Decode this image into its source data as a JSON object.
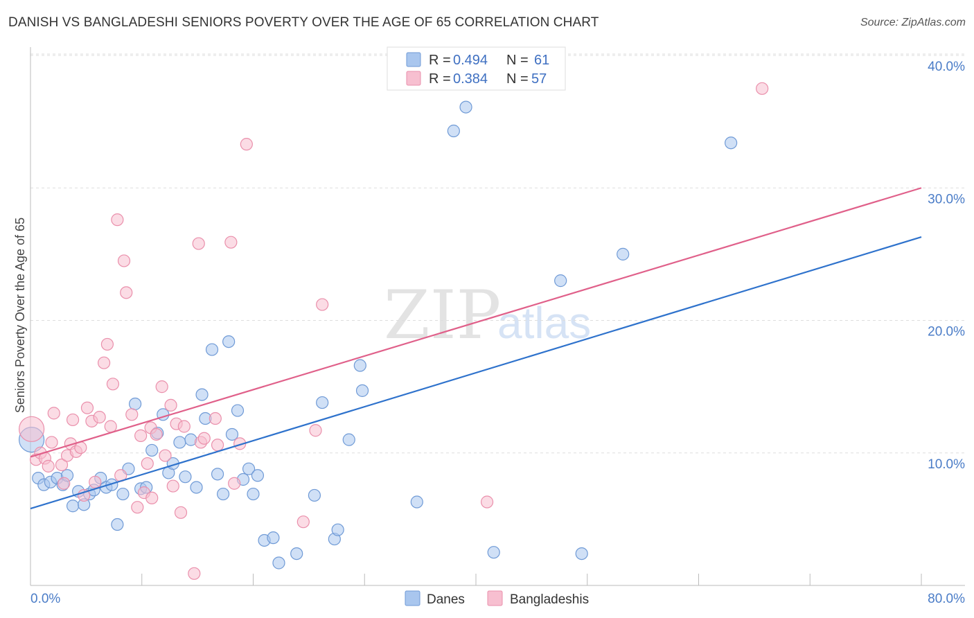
{
  "header": {
    "title": "DANISH VS BANGLADESHI SENIORS POVERTY OVER THE AGE OF 65 CORRELATION CHART",
    "source": "Source: ZipAtlas.com"
  },
  "watermark": {
    "zip": "ZIP",
    "atlas": "atlas"
  },
  "colors": {
    "danes_fill": "#a9c6ee",
    "danes_stroke": "#6f9ad6",
    "danes_line": "#2e72cc",
    "bang_fill": "#f7bfd0",
    "bang_stroke": "#ea8fab",
    "bang_line": "#e0608a",
    "tick": "#4a7cc7",
    "grid": "#dddddd"
  },
  "legend": {
    "rows": [
      {
        "r_label": "R =",
        "r_value": "0.494",
        "n_label": "N =",
        "n_value": "61"
      },
      {
        "r_label": "R =",
        "r_value": "0.384",
        "n_label": "N =",
        "n_value": "57"
      }
    ]
  },
  "bottom_legend": {
    "danes": "Danes",
    "bangladeshis": "Bangladeshis"
  },
  "chart_data": {
    "type": "scatter",
    "title": "DANISH VS BANGLADESHI SENIORS POVERTY OVER THE AGE OF 65 CORRELATION CHART",
    "xlabel": "",
    "ylabel": "Seniors Poverty Over the Age of 65",
    "xlim": [
      0,
      80
    ],
    "ylim": [
      0,
      40
    ],
    "x_tick_labels": [
      "0.0%",
      "80.0%"
    ],
    "y_ticks": [
      10,
      20,
      30,
      40
    ],
    "y_tick_labels": [
      "10.0%",
      "20.0%",
      "30.0%",
      "40.0%"
    ],
    "grid": true,
    "series": [
      {
        "name": "Danes",
        "r": 0.494,
        "n": 61,
        "trend": {
          "x": [
            0,
            80
          ],
          "y": [
            5.8,
            26.3
          ]
        },
        "points": [
          [
            0.7,
            8.1
          ],
          [
            1.2,
            7.6
          ],
          [
            1.8,
            7.8
          ],
          [
            2.4,
            8.1
          ],
          [
            2.9,
            7.6
          ],
          [
            3.3,
            8.3
          ],
          [
            3.8,
            6.0
          ],
          [
            4.3,
            7.1
          ],
          [
            4.8,
            6.1
          ],
          [
            5.3,
            6.9
          ],
          [
            5.7,
            7.2
          ],
          [
            6.3,
            8.1
          ],
          [
            6.8,
            7.4
          ],
          [
            7.3,
            7.6
          ],
          [
            7.8,
            4.6
          ],
          [
            8.3,
            6.9
          ],
          [
            8.8,
            8.8
          ],
          [
            9.4,
            13.7
          ],
          [
            9.9,
            7.3
          ],
          [
            10.4,
            7.4
          ],
          [
            10.9,
            10.2
          ],
          [
            11.4,
            11.5
          ],
          [
            11.9,
            12.9
          ],
          [
            12.4,
            8.5
          ],
          [
            12.8,
            9.2
          ],
          [
            13.4,
            10.8
          ],
          [
            13.9,
            8.2
          ],
          [
            14.4,
            11.0
          ],
          [
            14.9,
            7.4
          ],
          [
            15.4,
            14.4
          ],
          [
            15.7,
            12.6
          ],
          [
            16.3,
            17.8
          ],
          [
            16.8,
            8.4
          ],
          [
            17.3,
            6.9
          ],
          [
            17.8,
            18.4
          ],
          [
            18.1,
            11.4
          ],
          [
            18.6,
            13.2
          ],
          [
            19.1,
            8.0
          ],
          [
            19.6,
            8.8
          ],
          [
            20.0,
            6.9
          ],
          [
            20.4,
            8.3
          ],
          [
            21.0,
            3.4
          ],
          [
            21.8,
            3.6
          ],
          [
            22.3,
            1.7
          ],
          [
            23.9,
            2.4
          ],
          [
            25.5,
            6.8
          ],
          [
            26.2,
            13.8
          ],
          [
            27.3,
            3.5
          ],
          [
            27.6,
            4.2
          ],
          [
            28.6,
            11.0
          ],
          [
            29.6,
            16.6
          ],
          [
            29.8,
            14.7
          ],
          [
            34.7,
            6.3
          ],
          [
            38.0,
            34.3
          ],
          [
            39.1,
            36.1
          ],
          [
            41.6,
            2.5
          ],
          [
            47.6,
            23.0
          ],
          [
            49.5,
            2.4
          ],
          [
            53.2,
            25.0
          ],
          [
            62.9,
            33.4
          ],
          [
            0.1,
            11.0
          ]
        ]
      },
      {
        "name": "Bangladeshis",
        "r": 0.384,
        "n": 57,
        "trend": {
          "x": [
            0,
            80
          ],
          "y": [
            9.7,
            30.0
          ]
        },
        "points": [
          [
            0.1,
            11.8
          ],
          [
            0.5,
            9.5
          ],
          [
            0.9,
            10.0
          ],
          [
            1.3,
            9.6
          ],
          [
            1.6,
            9.0
          ],
          [
            1.9,
            10.8
          ],
          [
            2.1,
            13.0
          ],
          [
            2.8,
            9.1
          ],
          [
            3.0,
            7.7
          ],
          [
            3.3,
            9.8
          ],
          [
            3.6,
            10.7
          ],
          [
            3.8,
            12.5
          ],
          [
            4.1,
            10.1
          ],
          [
            4.5,
            10.4
          ],
          [
            4.8,
            6.8
          ],
          [
            5.1,
            13.4
          ],
          [
            5.5,
            12.4
          ],
          [
            5.8,
            7.8
          ],
          [
            6.2,
            12.7
          ],
          [
            6.6,
            16.8
          ],
          [
            6.9,
            18.2
          ],
          [
            7.2,
            12.0
          ],
          [
            7.4,
            15.2
          ],
          [
            7.8,
            27.6
          ],
          [
            8.1,
            8.3
          ],
          [
            8.4,
            24.5
          ],
          [
            8.6,
            22.1
          ],
          [
            9.1,
            12.9
          ],
          [
            9.6,
            5.9
          ],
          [
            9.9,
            11.3
          ],
          [
            10.2,
            7.0
          ],
          [
            10.5,
            9.2
          ],
          [
            10.8,
            11.9
          ],
          [
            10.9,
            6.6
          ],
          [
            11.3,
            11.4
          ],
          [
            11.8,
            15.0
          ],
          [
            12.1,
            9.8
          ],
          [
            12.6,
            13.6
          ],
          [
            12.8,
            7.5
          ],
          [
            13.1,
            12.2
          ],
          [
            13.5,
            5.5
          ],
          [
            13.8,
            12.0
          ],
          [
            14.7,
            0.9
          ],
          [
            15.1,
            25.8
          ],
          [
            15.3,
            10.8
          ],
          [
            15.6,
            11.1
          ],
          [
            16.6,
            12.6
          ],
          [
            16.8,
            10.6
          ],
          [
            18.0,
            25.9
          ],
          [
            18.3,
            7.7
          ],
          [
            18.8,
            10.7
          ],
          [
            19.4,
            33.3
          ],
          [
            24.5,
            4.8
          ],
          [
            25.6,
            11.7
          ],
          [
            26.2,
            21.2
          ],
          [
            41.0,
            6.3
          ],
          [
            65.7,
            37.5
          ]
        ]
      }
    ]
  }
}
